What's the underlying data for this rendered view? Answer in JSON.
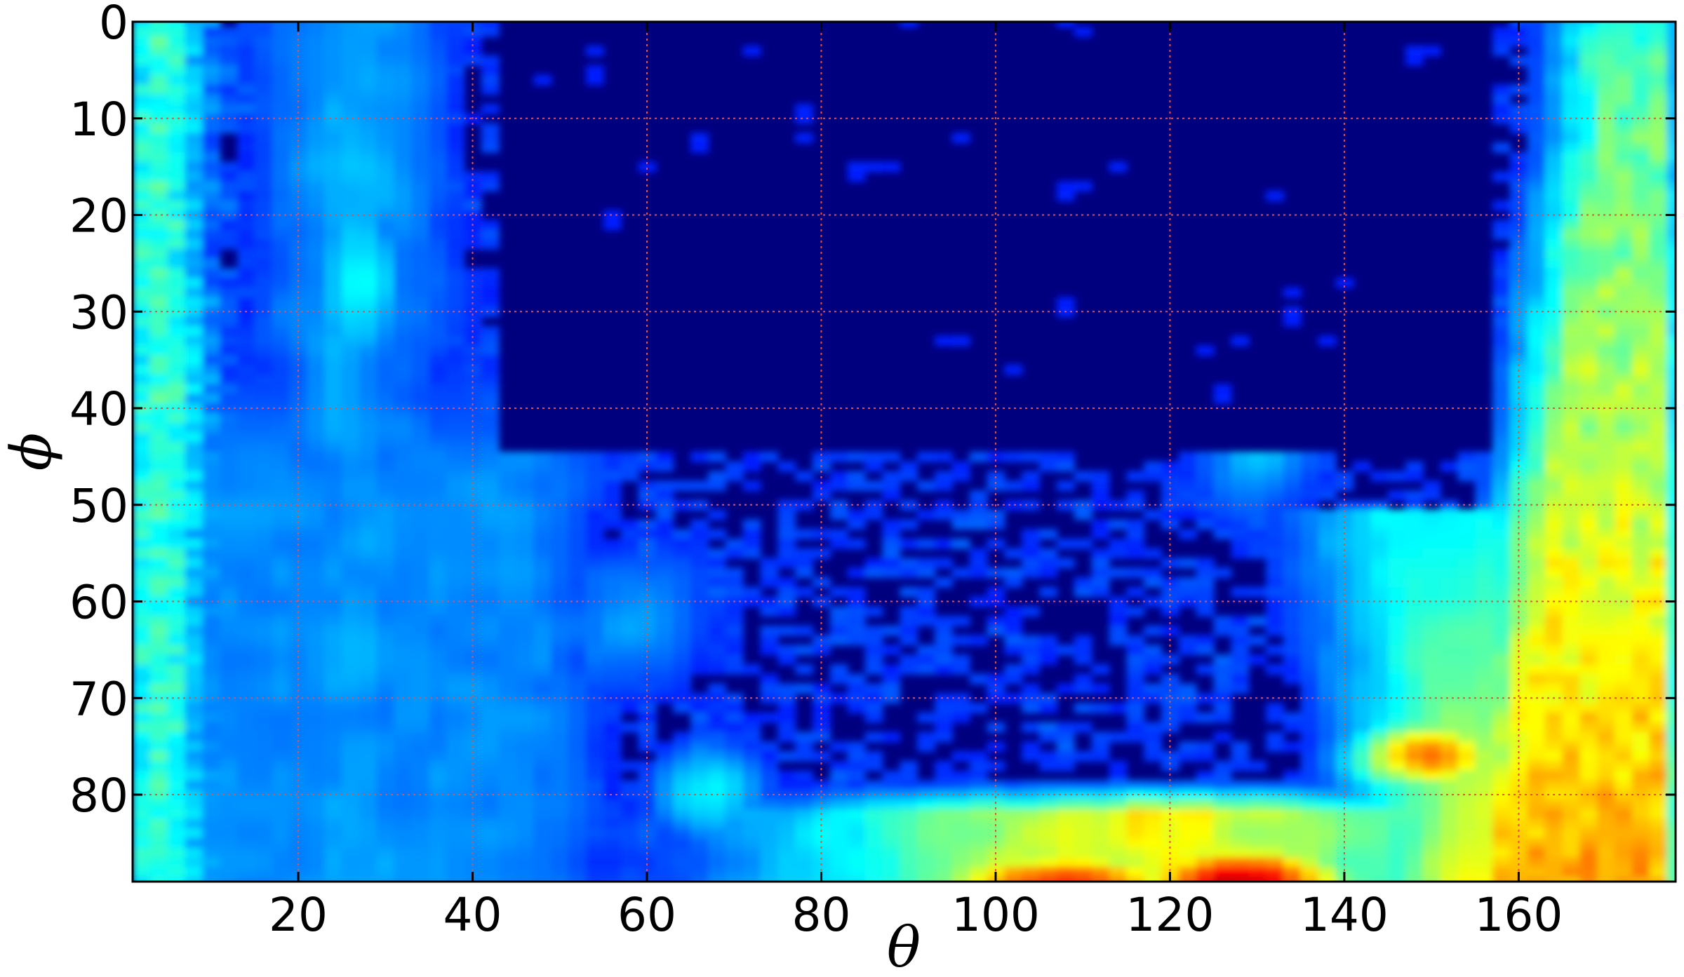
{
  "chart_data": {
    "type": "heatmap",
    "title": "",
    "xlabel": "θ",
    "ylabel": "ϕ",
    "xlim": [
      1,
      178
    ],
    "ylim": [
      89,
      0
    ],
    "xticks": [
      20,
      40,
      60,
      80,
      100,
      120,
      140,
      160
    ],
    "yticks": [
      0,
      10,
      20,
      30,
      40,
      50,
      60,
      70,
      80
    ],
    "xtick_labels": [
      "20",
      "40",
      "60",
      "80",
      "100",
      "120",
      "140",
      "160"
    ],
    "ytick_labels": [
      "0",
      "10",
      "20",
      "30",
      "40",
      "50",
      "60",
      "70",
      "80"
    ],
    "grid": true,
    "grid_color": "#ff4444",
    "colormap": "jet",
    "value_range": [
      0,
      1
    ],
    "resolution": {
      "theta_step": 2,
      "phi_step": 1
    },
    "description_of_intensity": {
      "left_edge_band_theta": [
        1,
        8
      ],
      "left_band_theta": [
        18,
        36
      ],
      "right_edge_band_theta": [
        160,
        178
      ],
      "bottom_band_phi": [
        78,
        89
      ],
      "peak_theta": 128,
      "peak_phi": 89
    }
  }
}
